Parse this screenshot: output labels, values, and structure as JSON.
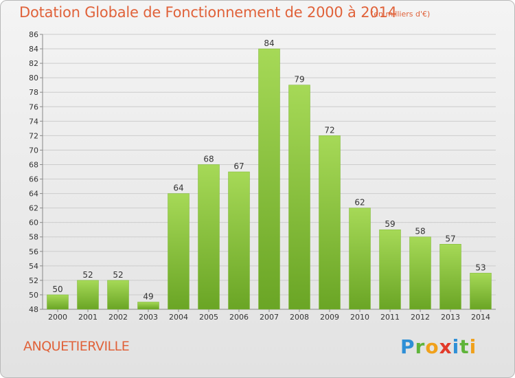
{
  "chart_data": {
    "type": "bar",
    "title": "Dotation Globale de Fonctionnement de 2000 à 2014",
    "subtitle": "(en milliers d'€)",
    "categories": [
      "2000",
      "2001",
      "2002",
      "2003",
      "2004",
      "2005",
      "2006",
      "2007",
      "2008",
      "2009",
      "2010",
      "2011",
      "2012",
      "2013",
      "2014"
    ],
    "values": [
      50,
      52,
      52,
      49,
      64,
      68,
      67,
      84,
      79,
      72,
      62,
      59,
      58,
      57,
      53
    ],
    "ylim": [
      48,
      86
    ],
    "yticks": [
      48,
      50,
      52,
      54,
      56,
      58,
      60,
      62,
      64,
      66,
      68,
      70,
      72,
      74,
      76,
      78,
      80,
      82,
      84,
      86
    ],
    "grid": true,
    "bar_color": "#8cc63f"
  },
  "commune": "ANQUETIERVILLE",
  "logo": {
    "p": "P",
    "r": "r",
    "o": "o",
    "x": "x",
    "i1": "i",
    "t": "t",
    "i2": "i"
  }
}
